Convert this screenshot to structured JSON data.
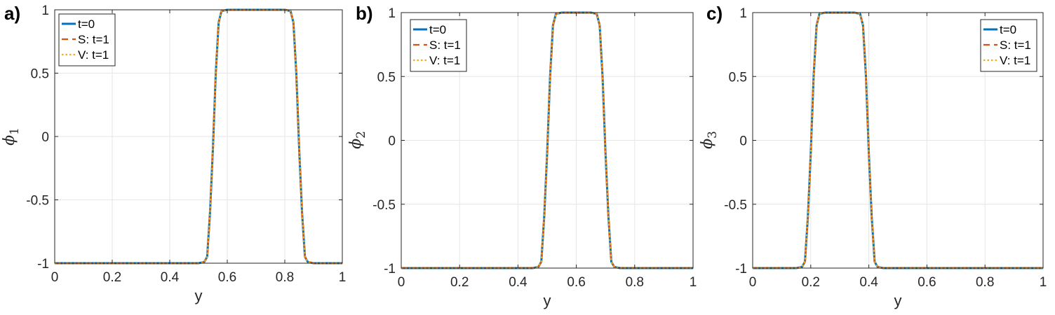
{
  "chart_data": [
    {
      "type": "line",
      "panel_label": "a)",
      "xlabel": "y",
      "ylabel": "ϕ",
      "ylabel_sub": "1",
      "xlim": [
        0,
        1
      ],
      "ylim": [
        -1,
        1
      ],
      "xticks": [
        0,
        0.2,
        0.4,
        0.6,
        0.8,
        1
      ],
      "xtick_labels": [
        "0",
        "0.2",
        "0.4",
        "0.6",
        "0.8",
        "1"
      ],
      "yticks": [
        -1,
        -0.5,
        0,
        0.5,
        1
      ],
      "ytick_labels": [
        "-1",
        "-0.5",
        "0",
        "0.5",
        "1"
      ],
      "grid": true,
      "legend_position": "top-left",
      "x": [
        0,
        0.5,
        0.52,
        0.53,
        0.54,
        0.55,
        0.56,
        0.57,
        0.58,
        0.6,
        0.8,
        0.82,
        0.83,
        0.84,
        0.85,
        0.86,
        0.87,
        0.88,
        0.9,
        1
      ],
      "series": [
        {
          "name": "t=0",
          "values": [
            -1,
            -1,
            -0.99,
            -0.95,
            -0.6,
            -0.1,
            0.5,
            0.9,
            0.99,
            1,
            1,
            0.99,
            0.9,
            0.5,
            -0.1,
            -0.6,
            -0.95,
            -0.99,
            -1,
            -1
          ]
        },
        {
          "name": "S: t=1",
          "values": [
            -1,
            -1,
            -0.99,
            -0.95,
            -0.6,
            -0.1,
            0.5,
            0.9,
            0.99,
            1,
            1,
            0.99,
            0.9,
            0.5,
            -0.1,
            -0.6,
            -0.95,
            -0.99,
            -1,
            -1
          ]
        },
        {
          "name": "V: t=1",
          "values": [
            -1,
            -1,
            -0.99,
            -0.95,
            -0.6,
            -0.1,
            0.5,
            0.9,
            0.99,
            1,
            1,
            0.99,
            0.9,
            0.5,
            -0.1,
            -0.6,
            -0.95,
            -0.99,
            -1,
            -1
          ]
        }
      ]
    },
    {
      "type": "line",
      "panel_label": "b)",
      "xlabel": "y",
      "ylabel": "ϕ",
      "ylabel_sub": "2",
      "xlim": [
        0,
        1
      ],
      "ylim": [
        -1,
        1
      ],
      "xticks": [
        0,
        0.2,
        0.4,
        0.6,
        0.8,
        1
      ],
      "xtick_labels": [
        "0",
        "0.2",
        "0.4",
        "0.6",
        "0.8",
        "1"
      ],
      "yticks": [
        -1,
        -0.5,
        0,
        0.5,
        1
      ],
      "ytick_labels": [
        "-1",
        "-0.5",
        "0",
        "0.5",
        "1"
      ],
      "grid": true,
      "legend_position": "top-left",
      "x": [
        0,
        0.45,
        0.47,
        0.48,
        0.49,
        0.5,
        0.51,
        0.52,
        0.53,
        0.55,
        0.65,
        0.67,
        0.68,
        0.69,
        0.7,
        0.71,
        0.72,
        0.73,
        0.75,
        1
      ],
      "series": [
        {
          "name": "t=0",
          "values": [
            -1,
            -1,
            -0.99,
            -0.95,
            -0.6,
            -0.1,
            0.5,
            0.9,
            0.99,
            1,
            1,
            0.99,
            0.9,
            0.5,
            -0.1,
            -0.6,
            -0.95,
            -0.99,
            -1,
            -1
          ]
        },
        {
          "name": "S: t=1",
          "values": [
            -1,
            -1,
            -0.99,
            -0.95,
            -0.6,
            -0.1,
            0.5,
            0.9,
            0.99,
            1,
            1,
            0.99,
            0.9,
            0.5,
            -0.1,
            -0.6,
            -0.95,
            -0.99,
            -1,
            -1
          ]
        },
        {
          "name": "V: t=1",
          "values": [
            -1,
            -1,
            -0.99,
            -0.95,
            -0.6,
            -0.1,
            0.5,
            0.9,
            0.99,
            1,
            1,
            0.99,
            0.9,
            0.5,
            -0.1,
            -0.6,
            -0.95,
            -0.99,
            -1,
            -1
          ]
        }
      ]
    },
    {
      "type": "line",
      "panel_label": "c)",
      "xlabel": "y",
      "ylabel": "ϕ",
      "ylabel_sub": "3",
      "xlim": [
        0,
        1
      ],
      "ylim": [
        -1,
        1
      ],
      "xticks": [
        0,
        0.2,
        0.4,
        0.6,
        0.8,
        1
      ],
      "xtick_labels": [
        "0",
        "0.2",
        "0.4",
        "0.6",
        "0.8",
        "1"
      ],
      "yticks": [
        -1,
        -0.5,
        0,
        0.5,
        1
      ],
      "ytick_labels": [
        "-1",
        "-0.5",
        "0",
        "0.5",
        "1"
      ],
      "grid": true,
      "legend_position": "top-right",
      "x": [
        0,
        0.15,
        0.17,
        0.18,
        0.19,
        0.2,
        0.21,
        0.22,
        0.23,
        0.25,
        0.35,
        0.37,
        0.38,
        0.39,
        0.4,
        0.41,
        0.42,
        0.43,
        0.45,
        1
      ],
      "series": [
        {
          "name": "t=0",
          "values": [
            -1,
            -1,
            -0.99,
            -0.95,
            -0.6,
            -0.1,
            0.5,
            0.9,
            0.99,
            1,
            1,
            0.99,
            0.9,
            0.5,
            -0.1,
            -0.6,
            -0.95,
            -0.99,
            -1,
            -1
          ]
        },
        {
          "name": "S: t=1",
          "values": [
            -1,
            -1,
            -0.99,
            -0.95,
            -0.6,
            -0.1,
            0.5,
            0.9,
            0.99,
            1,
            1,
            0.99,
            0.9,
            0.5,
            -0.1,
            -0.6,
            -0.95,
            -0.99,
            -1,
            -1
          ]
        },
        {
          "name": "V: t=1",
          "values": [
            -1,
            -1,
            -0.99,
            -0.95,
            -0.6,
            -0.1,
            0.5,
            0.9,
            0.99,
            1,
            1,
            0.99,
            0.9,
            0.5,
            -0.1,
            -0.6,
            -0.95,
            -0.99,
            -1,
            -1
          ]
        }
      ]
    }
  ],
  "series_styles": [
    {
      "color": "#0072bd",
      "dash": "solid"
    },
    {
      "color": "#d95319",
      "dash": "dashed"
    },
    {
      "color": "#edb120",
      "dash": "dotted"
    }
  ],
  "colors": {
    "axis": "#262626",
    "grid": "#e6e6e6",
    "background": "#ffffff"
  }
}
